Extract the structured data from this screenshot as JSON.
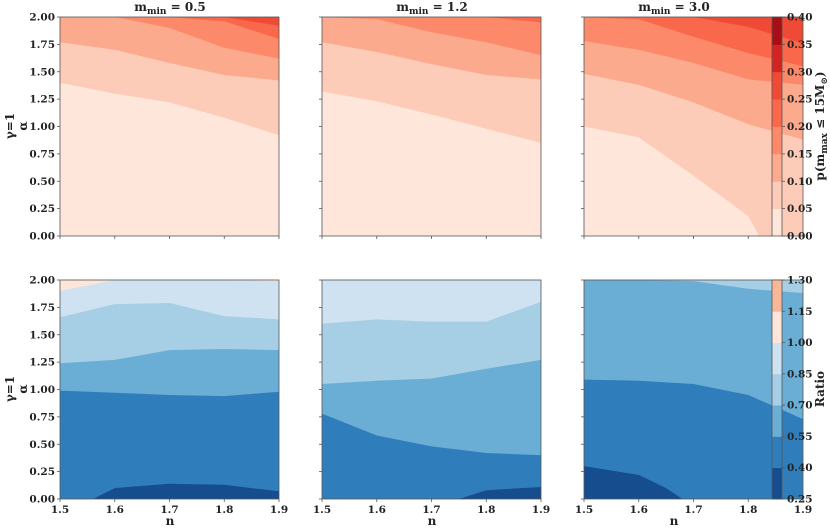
{
  "colors": {
    "reds": [
      "#fee6db",
      "#fdccb8",
      "#fcaa8d",
      "#fc8a6a",
      "#f9684a",
      "#ee4a36",
      "#d42421",
      "#a50f15"
    ],
    "blues": [
      "#154d8f",
      "#2f7ebb",
      "#6aaed6",
      "#a6cee4",
      "#cfe2f1",
      "#fde5d9",
      "#f9b79a"
    ],
    "axis": "#555555"
  },
  "chart_data": [
    {
      "type": "contour",
      "panel": "top-left",
      "title_base": "m",
      "title_sub": "min",
      "title_tail": " = 0.5",
      "ylabel_line1": "γ=1",
      "ylabel_line2": "α",
      "x": [
        1.5,
        1.6,
        1.7,
        1.8,
        1.9
      ],
      "xlim": [
        1.5,
        1.9
      ],
      "ylim": [
        0,
        2.0
      ],
      "boundaries": [
        {
          "level": 0.05,
          "pts": [
            [
              1.5,
              1.4
            ],
            [
              1.6,
              1.3
            ],
            [
              1.7,
              1.22
            ],
            [
              1.8,
              1.08
            ],
            [
              1.9,
              0.92
            ]
          ]
        },
        {
          "level": 0.1,
          "pts": [
            [
              1.5,
              1.77
            ],
            [
              1.6,
              1.7
            ],
            [
              1.7,
              1.58
            ],
            [
              1.8,
              1.47
            ],
            [
              1.9,
              1.42
            ]
          ]
        },
        {
          "level": 0.15,
          "pts": [
            [
              1.5,
              2.0
            ],
            [
              1.6,
              2.0
            ],
            [
              1.7,
              1.9
            ],
            [
              1.8,
              1.72
            ],
            [
              1.9,
              1.62
            ]
          ]
        },
        {
          "level": 0.2,
          "pts": [
            [
              1.5,
              2.0
            ],
            [
              1.6,
              2.0
            ],
            [
              1.7,
              2.0
            ],
            [
              1.8,
              1.96
            ],
            [
              1.9,
              1.8
            ]
          ]
        },
        {
          "level": 0.25,
          "pts": [
            [
              1.5,
              2.0
            ],
            [
              1.6,
              2.0
            ],
            [
              1.7,
              2.0
            ],
            [
              1.8,
              2.0
            ],
            [
              1.9,
              1.92
            ]
          ]
        }
      ]
    },
    {
      "type": "contour",
      "panel": "top-middle",
      "title_base": "m",
      "title_sub": "min",
      "title_tail": " = 1.2",
      "x": [
        1.5,
        1.6,
        1.7,
        1.8,
        1.9
      ],
      "xlim": [
        1.5,
        1.9
      ],
      "ylim": [
        0,
        2.0
      ],
      "boundaries": [
        {
          "level": 0.05,
          "pts": [
            [
              1.5,
              1.32
            ],
            [
              1.6,
              1.23
            ],
            [
              1.7,
              1.11
            ],
            [
              1.8,
              0.98
            ],
            [
              1.9,
              0.85
            ]
          ]
        },
        {
          "level": 0.1,
          "pts": [
            [
              1.5,
              1.77
            ],
            [
              1.6,
              1.68
            ],
            [
              1.7,
              1.57
            ],
            [
              1.8,
              1.47
            ],
            [
              1.9,
              1.43
            ]
          ]
        },
        {
          "level": 0.15,
          "pts": [
            [
              1.5,
              2.0
            ],
            [
              1.6,
              1.98
            ],
            [
              1.7,
              1.86
            ],
            [
              1.8,
              1.77
            ],
            [
              1.9,
              1.65
            ]
          ]
        },
        {
          "level": 0.2,
          "pts": [
            [
              1.5,
              2.0
            ],
            [
              1.6,
              2.0
            ],
            [
              1.7,
              2.0
            ],
            [
              1.8,
              2.0
            ],
            [
              1.9,
              1.95
            ]
          ]
        }
      ]
    },
    {
      "type": "contour",
      "panel": "top-right",
      "title_base": "m",
      "title_sub": "min",
      "title_tail": " = 3.0",
      "x": [
        1.5,
        1.6,
        1.7,
        1.8,
        1.9
      ],
      "xlim": [
        1.5,
        1.9
      ],
      "ylim": [
        0,
        2.0
      ],
      "boundaries": [
        {
          "level": 0.05,
          "pts": [
            [
              1.5,
              1.0
            ],
            [
              1.6,
              0.9
            ],
            [
              1.7,
              0.55
            ],
            [
              1.8,
              0.18
            ],
            [
              1.82,
              0.0
            ],
            [
              1.9,
              0.0
            ]
          ]
        },
        {
          "level": 0.1,
          "pts": [
            [
              1.5,
              1.48
            ],
            [
              1.6,
              1.38
            ],
            [
              1.7,
              1.22
            ],
            [
              1.8,
              1.02
            ],
            [
              1.9,
              0.88
            ]
          ]
        },
        {
          "level": 0.15,
          "pts": [
            [
              1.5,
              1.78
            ],
            [
              1.6,
              1.7
            ],
            [
              1.7,
              1.58
            ],
            [
              1.8,
              1.43
            ],
            [
              1.9,
              1.38
            ]
          ]
        },
        {
          "level": 0.2,
          "pts": [
            [
              1.5,
              2.0
            ],
            [
              1.6,
              1.98
            ],
            [
              1.7,
              1.82
            ],
            [
              1.8,
              1.67
            ],
            [
              1.9,
              1.55
            ]
          ]
        },
        {
          "level": 0.25,
          "pts": [
            [
              1.5,
              2.0
            ],
            [
              1.6,
              2.0
            ],
            [
              1.7,
              2.0
            ],
            [
              1.8,
              1.91
            ],
            [
              1.9,
              1.76
            ]
          ]
        }
      ]
    },
    {
      "type": "contour",
      "panel": "bottom-left",
      "ylabel_line1": "γ=1",
      "ylabel_line2": "α",
      "xlabel": "n",
      "x": [
        1.5,
        1.6,
        1.7,
        1.8,
        1.9
      ],
      "xlim": [
        1.5,
        1.9
      ],
      "ylim": [
        0,
        2.0
      ],
      "boundaries": [
        {
          "level": 0.4,
          "pts": [
            [
              1.5,
              0.0
            ],
            [
              1.56,
              0.0
            ],
            [
              1.6,
              0.1
            ],
            [
              1.7,
              0.14
            ],
            [
              1.8,
              0.13
            ],
            [
              1.9,
              0.07
            ]
          ]
        },
        {
          "level": 0.55,
          "pts": [
            [
              1.5,
              0.99
            ],
            [
              1.6,
              0.97
            ],
            [
              1.7,
              0.95
            ],
            [
              1.8,
              0.94
            ],
            [
              1.9,
              0.98
            ]
          ]
        },
        {
          "level": 0.7,
          "pts": [
            [
              1.5,
              1.24
            ],
            [
              1.6,
              1.27
            ],
            [
              1.7,
              1.36
            ],
            [
              1.8,
              1.37
            ],
            [
              1.9,
              1.36
            ]
          ]
        },
        {
          "level": 0.85,
          "pts": [
            [
              1.5,
              1.66
            ],
            [
              1.6,
              1.78
            ],
            [
              1.7,
              1.79
            ],
            [
              1.8,
              1.67
            ],
            [
              1.9,
              1.64
            ]
          ]
        },
        {
          "level": 1.0,
          "pts": [
            [
              1.5,
              1.9
            ],
            [
              1.6,
              2.0
            ],
            [
              1.7,
              2.0
            ],
            [
              1.8,
              2.0
            ],
            [
              1.9,
              1.99
            ]
          ]
        }
      ]
    },
    {
      "type": "contour",
      "panel": "bottom-middle",
      "xlabel": "n",
      "x": [
        1.5,
        1.6,
        1.7,
        1.8,
        1.9
      ],
      "xlim": [
        1.5,
        1.9
      ],
      "ylim": [
        0,
        2.0
      ],
      "boundaries": [
        {
          "level": 0.4,
          "pts": [
            [
              1.5,
              0.0
            ],
            [
              1.5,
              0.0
            ],
            [
              1.75,
              0.0
            ],
            [
              1.8,
              0.08
            ],
            [
              1.9,
              0.11
            ]
          ]
        },
        {
          "level": 0.55,
          "pts": [
            [
              1.5,
              0.78
            ],
            [
              1.6,
              0.58
            ],
            [
              1.7,
              0.48
            ],
            [
              1.8,
              0.42
            ],
            [
              1.9,
              0.4
            ]
          ]
        },
        {
          "level": 0.7,
          "pts": [
            [
              1.5,
              1.05
            ],
            [
              1.6,
              1.08
            ],
            [
              1.7,
              1.1
            ],
            [
              1.8,
              1.19
            ],
            [
              1.9,
              1.27
            ]
          ]
        },
        {
          "level": 0.85,
          "pts": [
            [
              1.5,
              1.6
            ],
            [
              1.6,
              1.64
            ],
            [
              1.7,
              1.62
            ],
            [
              1.8,
              1.62
            ],
            [
              1.9,
              1.8
            ]
          ]
        }
      ]
    },
    {
      "type": "contour",
      "panel": "bottom-right",
      "xlabel": "n",
      "x": [
        1.5,
        1.6,
        1.7,
        1.8,
        1.9
      ],
      "xlim": [
        1.5,
        1.9
      ],
      "ylim": [
        0,
        2.0
      ],
      "boundaries": [
        {
          "level": 0.4,
          "pts": [
            [
              1.5,
              0.3
            ],
            [
              1.6,
              0.22
            ],
            [
              1.65,
              0.1
            ],
            [
              1.68,
              0.0
            ],
            [
              1.9,
              0.0
            ]
          ]
        },
        {
          "level": 0.55,
          "pts": [
            [
              1.5,
              1.09
            ],
            [
              1.6,
              1.08
            ],
            [
              1.7,
              1.05
            ],
            [
              1.8,
              0.95
            ],
            [
              1.9,
              0.73
            ]
          ]
        },
        {
          "level": 0.7,
          "pts": [
            [
              1.5,
              2.0
            ],
            [
              1.6,
              2.0
            ],
            [
              1.7,
              1.99
            ],
            [
              1.8,
              1.92
            ],
            [
              1.9,
              1.88
            ]
          ]
        }
      ]
    },
    {
      "type": "colorbar",
      "panel": "top-colorbar",
      "label_base": "p(m",
      "label_sub": "max",
      "label_tail": " ≤ 15M",
      "label_sun": "⊙",
      "label_close": ")",
      "ticks": [
        "0.00",
        "0.05",
        "0.10",
        "0.15",
        "0.20",
        "0.25",
        "0.30",
        "0.35",
        "0.40"
      ],
      "levels": [
        0,
        0.05,
        0.1,
        0.15,
        0.2,
        0.25,
        0.3,
        0.35,
        0.4
      ]
    },
    {
      "type": "colorbar",
      "panel": "bottom-colorbar",
      "label": "Ratio",
      "ticks": [
        "0.25",
        "0.40",
        "0.55",
        "0.70",
        "0.85",
        "1.00",
        "1.15",
        "1.30"
      ],
      "levels": [
        0.25,
        0.4,
        0.55,
        0.7,
        0.85,
        1.0,
        1.15,
        1.3
      ]
    }
  ],
  "axes": {
    "x_ticks": [
      "1.5",
      "1.6",
      "1.7",
      "1.8",
      "1.9"
    ],
    "y_ticks": [
      "0.00",
      "0.25",
      "0.50",
      "0.75",
      "1.00",
      "1.25",
      "1.50",
      "1.75",
      "2.00"
    ]
  }
}
